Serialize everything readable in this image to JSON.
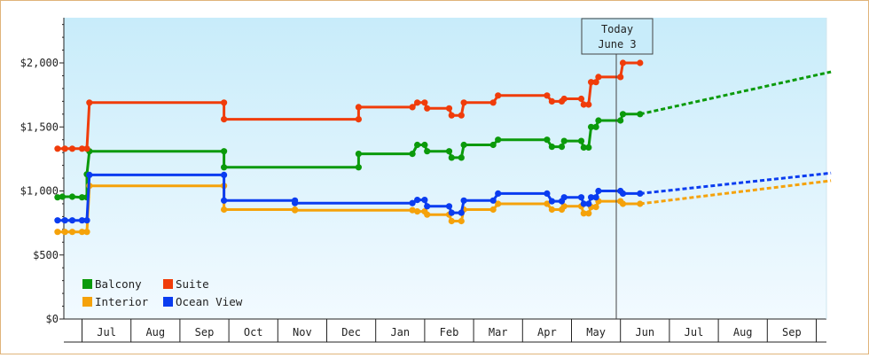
{
  "chart_data": {
    "type": "line",
    "title": "",
    "xlabel": "",
    "ylabel": "",
    "ylim": [
      0,
      2350
    ],
    "y_ticks": [
      {
        "value": 0,
        "label": "$0"
      },
      {
        "value": 500,
        "label": "$500"
      },
      {
        "value": 1000,
        "label": "$1,000"
      },
      {
        "value": 1500,
        "label": "$1,500"
      },
      {
        "value": 2000,
        "label": "$2,000"
      }
    ],
    "x_ticks": [
      "Jul",
      "Aug",
      "Sep",
      "Oct",
      "Nov",
      "Dec",
      "Jan",
      "Feb",
      "Mar",
      "Apr",
      "May",
      "Jun",
      "Jul",
      "Aug",
      "Sep"
    ],
    "today": {
      "line1": "Today",
      "line2": "June 3"
    },
    "grid": false,
    "legend_position": "bottom-left",
    "colors": {
      "Balcony": "#0b9a0b",
      "Suite": "#f03c0a",
      "Interior": "#f5a20a",
      "Ocean View": "#0a3cf0",
      "background_top": "#c8ecfa",
      "background_bottom": "#f2faff"
    },
    "legend": [
      "Balcony",
      "Suite",
      "Interior",
      "Ocean View"
    ],
    "series": [
      {
        "name": "Balcony",
        "points": [
          [
            -0.5,
            950
          ],
          [
            -0.4,
            955
          ],
          [
            -0.2,
            955
          ],
          [
            0,
            950
          ],
          [
            0.1,
            950
          ],
          [
            0.1,
            1130
          ],
          [
            0.15,
            1310
          ],
          [
            2.9,
            1310
          ],
          [
            2.9,
            1185
          ],
          [
            5.65,
            1185
          ],
          [
            5.65,
            1290
          ],
          [
            6.75,
            1290
          ],
          [
            6.85,
            1360
          ],
          [
            7.0,
            1360
          ],
          [
            7.05,
            1310
          ],
          [
            7.5,
            1310
          ],
          [
            7.55,
            1260
          ],
          [
            7.75,
            1260
          ],
          [
            7.8,
            1360
          ],
          [
            8.4,
            1360
          ],
          [
            8.5,
            1400
          ],
          [
            9.5,
            1400
          ],
          [
            9.6,
            1345
          ],
          [
            9.8,
            1345
          ],
          [
            9.85,
            1390
          ],
          [
            10.2,
            1390
          ],
          [
            10.25,
            1340
          ],
          [
            10.35,
            1340
          ],
          [
            10.4,
            1500
          ],
          [
            10.5,
            1500
          ],
          [
            10.55,
            1550
          ],
          [
            11.0,
            1550
          ],
          [
            11.05,
            1600
          ],
          [
            11.4,
            1600
          ]
        ]
      },
      {
        "name": "Suite",
        "points": [
          [
            -0.5,
            1330
          ],
          [
            -0.35,
            1330
          ],
          [
            -0.2,
            1330
          ],
          [
            0,
            1330
          ],
          [
            0.1,
            1330
          ],
          [
            0.15,
            1690
          ],
          [
            2.9,
            1690
          ],
          [
            2.9,
            1560
          ],
          [
            5.65,
            1560
          ],
          [
            5.65,
            1655
          ],
          [
            6.75,
            1655
          ],
          [
            6.85,
            1690
          ],
          [
            7.0,
            1690
          ],
          [
            7.05,
            1645
          ],
          [
            7.5,
            1645
          ],
          [
            7.55,
            1590
          ],
          [
            7.75,
            1590
          ],
          [
            7.8,
            1690
          ],
          [
            8.4,
            1690
          ],
          [
            8.5,
            1745
          ],
          [
            9.5,
            1745
          ],
          [
            9.6,
            1700
          ],
          [
            9.8,
            1700
          ],
          [
            9.85,
            1720
          ],
          [
            10.2,
            1720
          ],
          [
            10.25,
            1675
          ],
          [
            10.35,
            1675
          ],
          [
            10.4,
            1850
          ],
          [
            10.5,
            1850
          ],
          [
            10.55,
            1890
          ],
          [
            11.0,
            1890
          ],
          [
            11.05,
            2000
          ],
          [
            11.4,
            2000
          ]
        ]
      },
      {
        "name": "Interior",
        "points": [
          [
            -0.5,
            680
          ],
          [
            -0.35,
            680
          ],
          [
            -0.2,
            680
          ],
          [
            0,
            680
          ],
          [
            0.1,
            680
          ],
          [
            0.15,
            1040
          ],
          [
            2.9,
            1040
          ],
          [
            2.9,
            855
          ],
          [
            4.35,
            855
          ],
          [
            4.35,
            850
          ],
          [
            6.75,
            850
          ],
          [
            6.85,
            840
          ],
          [
            7.0,
            840
          ],
          [
            7.05,
            815
          ],
          [
            7.5,
            815
          ],
          [
            7.55,
            765
          ],
          [
            7.75,
            765
          ],
          [
            7.8,
            855
          ],
          [
            8.4,
            855
          ],
          [
            8.5,
            900
          ],
          [
            9.5,
            900
          ],
          [
            9.6,
            855
          ],
          [
            9.8,
            855
          ],
          [
            9.85,
            880
          ],
          [
            10.2,
            880
          ],
          [
            10.25,
            825
          ],
          [
            10.35,
            825
          ],
          [
            10.4,
            875
          ],
          [
            10.5,
            875
          ],
          [
            10.55,
            920
          ],
          [
            11.0,
            920
          ],
          [
            11.05,
            900
          ],
          [
            11.4,
            900
          ]
        ]
      },
      {
        "name": "Ocean View",
        "points": [
          [
            -0.5,
            770
          ],
          [
            -0.35,
            770
          ],
          [
            -0.2,
            770
          ],
          [
            0,
            770
          ],
          [
            0.1,
            770
          ],
          [
            0.15,
            1125
          ],
          [
            2.9,
            1125
          ],
          [
            2.9,
            925
          ],
          [
            4.35,
            925
          ],
          [
            4.35,
            905
          ],
          [
            6.75,
            905
          ],
          [
            6.85,
            930
          ],
          [
            7.0,
            930
          ],
          [
            7.05,
            880
          ],
          [
            7.5,
            880
          ],
          [
            7.55,
            830
          ],
          [
            7.75,
            830
          ],
          [
            7.8,
            925
          ],
          [
            8.4,
            925
          ],
          [
            8.5,
            980
          ],
          [
            9.5,
            980
          ],
          [
            9.6,
            920
          ],
          [
            9.8,
            920
          ],
          [
            9.85,
            950
          ],
          [
            10.2,
            950
          ],
          [
            10.25,
            900
          ],
          [
            10.35,
            900
          ],
          [
            10.4,
            950
          ],
          [
            10.5,
            950
          ],
          [
            10.55,
            1000
          ],
          [
            11.0,
            1000
          ],
          [
            11.05,
            980
          ],
          [
            11.4,
            980
          ]
        ]
      }
    ],
    "projections": [
      {
        "name": "Balcony",
        "points": [
          [
            11.4,
            1600
          ],
          [
            15.3,
            1930
          ]
        ]
      },
      {
        "name": "Interior",
        "points": [
          [
            11.4,
            900
          ],
          [
            15.3,
            1080
          ]
        ]
      },
      {
        "name": "Ocean View",
        "points": [
          [
            11.4,
            980
          ],
          [
            15.3,
            1140
          ]
        ]
      }
    ]
  }
}
